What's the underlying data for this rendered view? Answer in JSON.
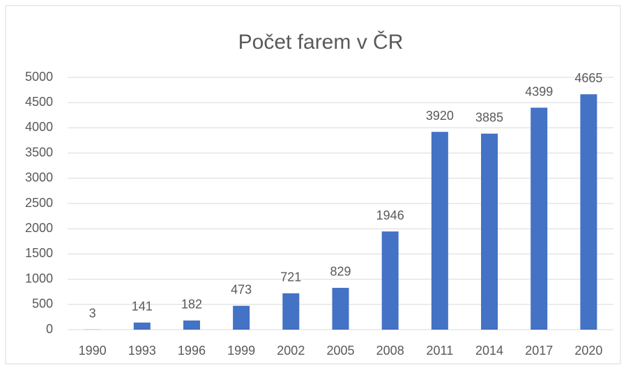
{
  "chart_data": {
    "type": "bar",
    "title": "Počet farem v ČR",
    "categories": [
      "1990",
      "1993",
      "1996",
      "1999",
      "2002",
      "2005",
      "2008",
      "2011",
      "2014",
      "2017",
      "2020"
    ],
    "values": [
      3,
      141,
      182,
      473,
      721,
      829,
      1946,
      3920,
      3885,
      4399,
      4665
    ],
    "color": "#4472c4",
    "ylim": [
      0,
      5000
    ],
    "yticks": [
      0,
      500,
      1000,
      1500,
      2000,
      2500,
      3000,
      3500,
      4000,
      4500,
      5000
    ],
    "grid": true
  }
}
